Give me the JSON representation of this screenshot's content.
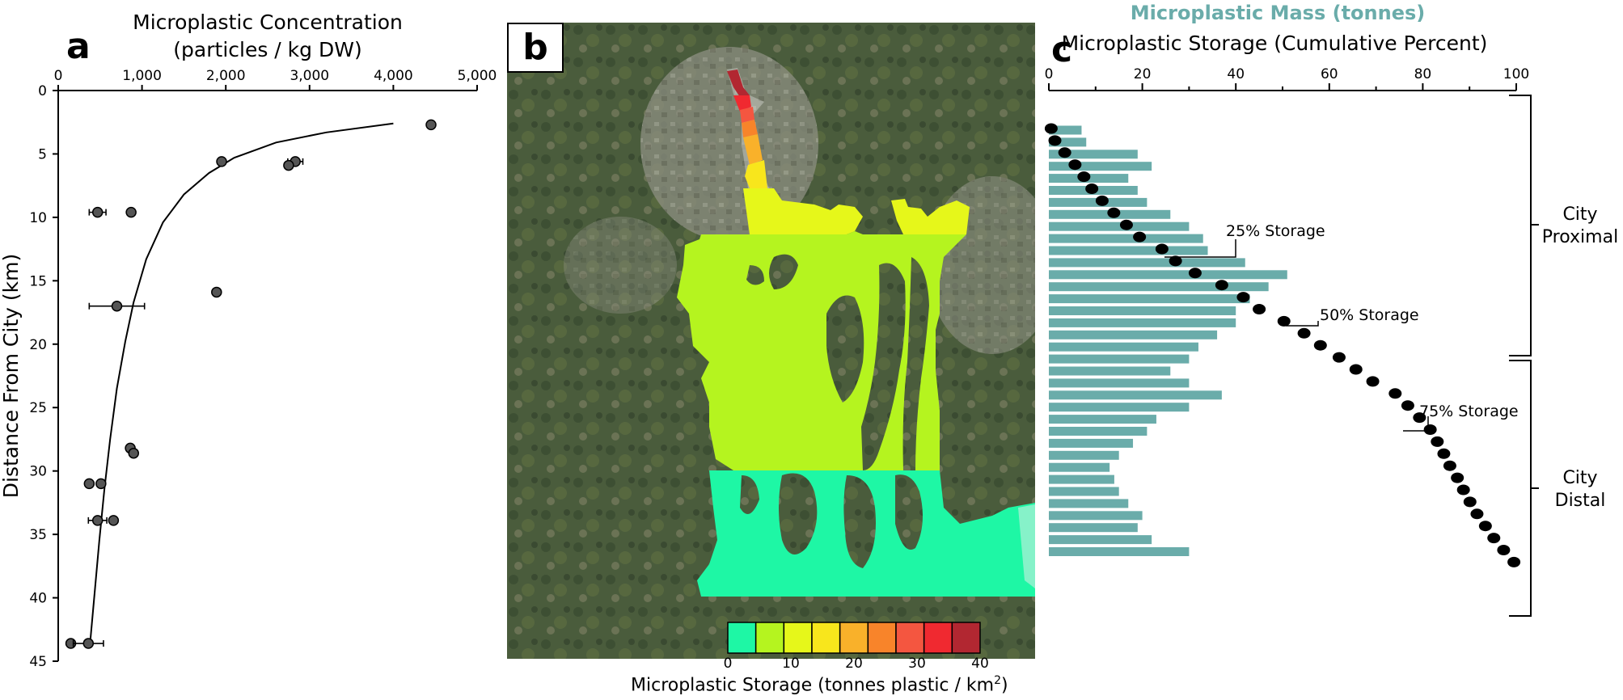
{
  "panels": {
    "a": {
      "letter": "a",
      "title_line1": "Microplastic Concentration",
      "title_line2": "(particles / kg DW)",
      "ylabel": "Distance From City (km)"
    },
    "b": {
      "letter": "b",
      "colorbar_label": "Microplastic Storage (tonnes plastic / km",
      "colorbar_label_sup": "2",
      "colorbar_label_end": ")"
    },
    "c": {
      "letter": "c",
      "title_top": "Microplastic Mass (tonnes)",
      "title_bottom": "Microplastic Storage (Cumulative Percent)",
      "annotations": [
        "25% Storage",
        "50% Storage",
        "75% Storage"
      ],
      "bracket_labels": [
        {
          "line1": "City",
          "line2": "Proximal"
        },
        {
          "line1": "City",
          "line2": "Distal"
        }
      ]
    }
  },
  "colors": {
    "bar_fill": "#6aacaa",
    "title_top": "#6aacaa",
    "point_fill": "#555555",
    "cum_point": "#000000"
  },
  "chart_data": [
    {
      "type": "scatter",
      "title": "Microplastic Concentration (particles / kg DW)",
      "xlabel": "Microplastic Concentration (particles / kg DW)",
      "ylabel": "Distance From City (km)",
      "xlim": [
        0,
        5000
      ],
      "ylim": [
        45,
        0
      ],
      "x_ticks": [
        "0",
        "1,000",
        "2,000",
        "3,000",
        "4,000",
        "5,000"
      ],
      "y_ticks": [
        "0",
        "5",
        "10",
        "15",
        "20",
        "25",
        "30",
        "35",
        "40",
        "45"
      ],
      "points": [
        {
          "x": 4450,
          "y": 2.7,
          "xerr": 0
        },
        {
          "x": 1950,
          "y": 5.6,
          "xerr": 0
        },
        {
          "x": 2830,
          "y": 5.6,
          "xerr": 90
        },
        {
          "x": 2750,
          "y": 5.9,
          "xerr": 0
        },
        {
          "x": 470,
          "y": 9.6,
          "xerr": 100
        },
        {
          "x": 870,
          "y": 9.6,
          "xerr": 0
        },
        {
          "x": 1890,
          "y": 15.9,
          "xerr": 0
        },
        {
          "x": 700,
          "y": 17.0,
          "xerr": 330
        },
        {
          "x": 860,
          "y": 28.2,
          "xerr": 0
        },
        {
          "x": 900,
          "y": 28.6,
          "xerr": 0
        },
        {
          "x": 370,
          "y": 31.0,
          "xerr": 0
        },
        {
          "x": 510,
          "y": 31.0,
          "xerr": 0
        },
        {
          "x": 470,
          "y": 33.9,
          "xerr": 110
        },
        {
          "x": 660,
          "y": 33.9,
          "xerr": 0
        },
        {
          "x": 150,
          "y": 43.6,
          "xerr": 0
        },
        {
          "x": 360,
          "y": 43.6,
          "xerr": 180
        }
      ],
      "fit_curve": [
        [
          4000,
          2.6
        ],
        [
          3200,
          3.3
        ],
        [
          2600,
          4.1
        ],
        [
          2100,
          5.3
        ],
        [
          1800,
          6.5
        ],
        [
          1500,
          8.2
        ],
        [
          1250,
          10.4
        ],
        [
          1050,
          13.3
        ],
        [
          900,
          16.7
        ],
        [
          800,
          19.8
        ],
        [
          700,
          23.5
        ],
        [
          620,
          27.5
        ],
        [
          550,
          31.5
        ],
        [
          490,
          35.5
        ],
        [
          440,
          39.2
        ],
        [
          380,
          43.6
        ]
      ]
    },
    {
      "type": "bar",
      "title": "Microplastic Mass (tonnes)",
      "orientation": "horizontal",
      "xlim": [
        0,
        100
      ],
      "values": [
        7,
        8,
        19,
        22,
        17,
        19,
        21,
        26,
        30,
        33,
        34,
        42,
        51,
        47,
        43,
        40,
        40,
        36,
        32,
        30,
        26,
        30,
        37,
        30,
        23,
        21,
        18,
        15,
        13,
        14,
        15,
        17,
        20,
        19,
        22,
        30
      ]
    },
    {
      "type": "scatter",
      "title": "Microplastic Storage (Cumulative Percent)",
      "x_ticks": [
        "0",
        "20",
        "40",
        "60",
        "80",
        "100"
      ],
      "xlim": [
        0,
        100
      ],
      "values": [
        0.5,
        1.3,
        3.4,
        5.6,
        7.5,
        9.2,
        11.4,
        13.9,
        16.6,
        19.4,
        24.2,
        27.1,
        31.3,
        37.0,
        41.6,
        45.0,
        50.3,
        54.6,
        58.1,
        62.1,
        65.7,
        69.3,
        74.1,
        76.8,
        79.3,
        81.6,
        83.1,
        84.5,
        85.8,
        87.4,
        88.7,
        90.1,
        91.6,
        93.4,
        95.2,
        97.3,
        99.5
      ]
    },
    {
      "type": "heatmap",
      "title": "Microplastic Storage (tonnes plastic / km2)",
      "colorbar_ticks": [
        "0",
        "10",
        "20",
        "30",
        "40"
      ],
      "colorbar_colors": [
        "#1ef7a5",
        "#b5f41f",
        "#e6f71a",
        "#f8e61c",
        "#f9b12a",
        "#f8842a",
        "#f45640",
        "#f02930",
        "#b22731"
      ]
    }
  ]
}
